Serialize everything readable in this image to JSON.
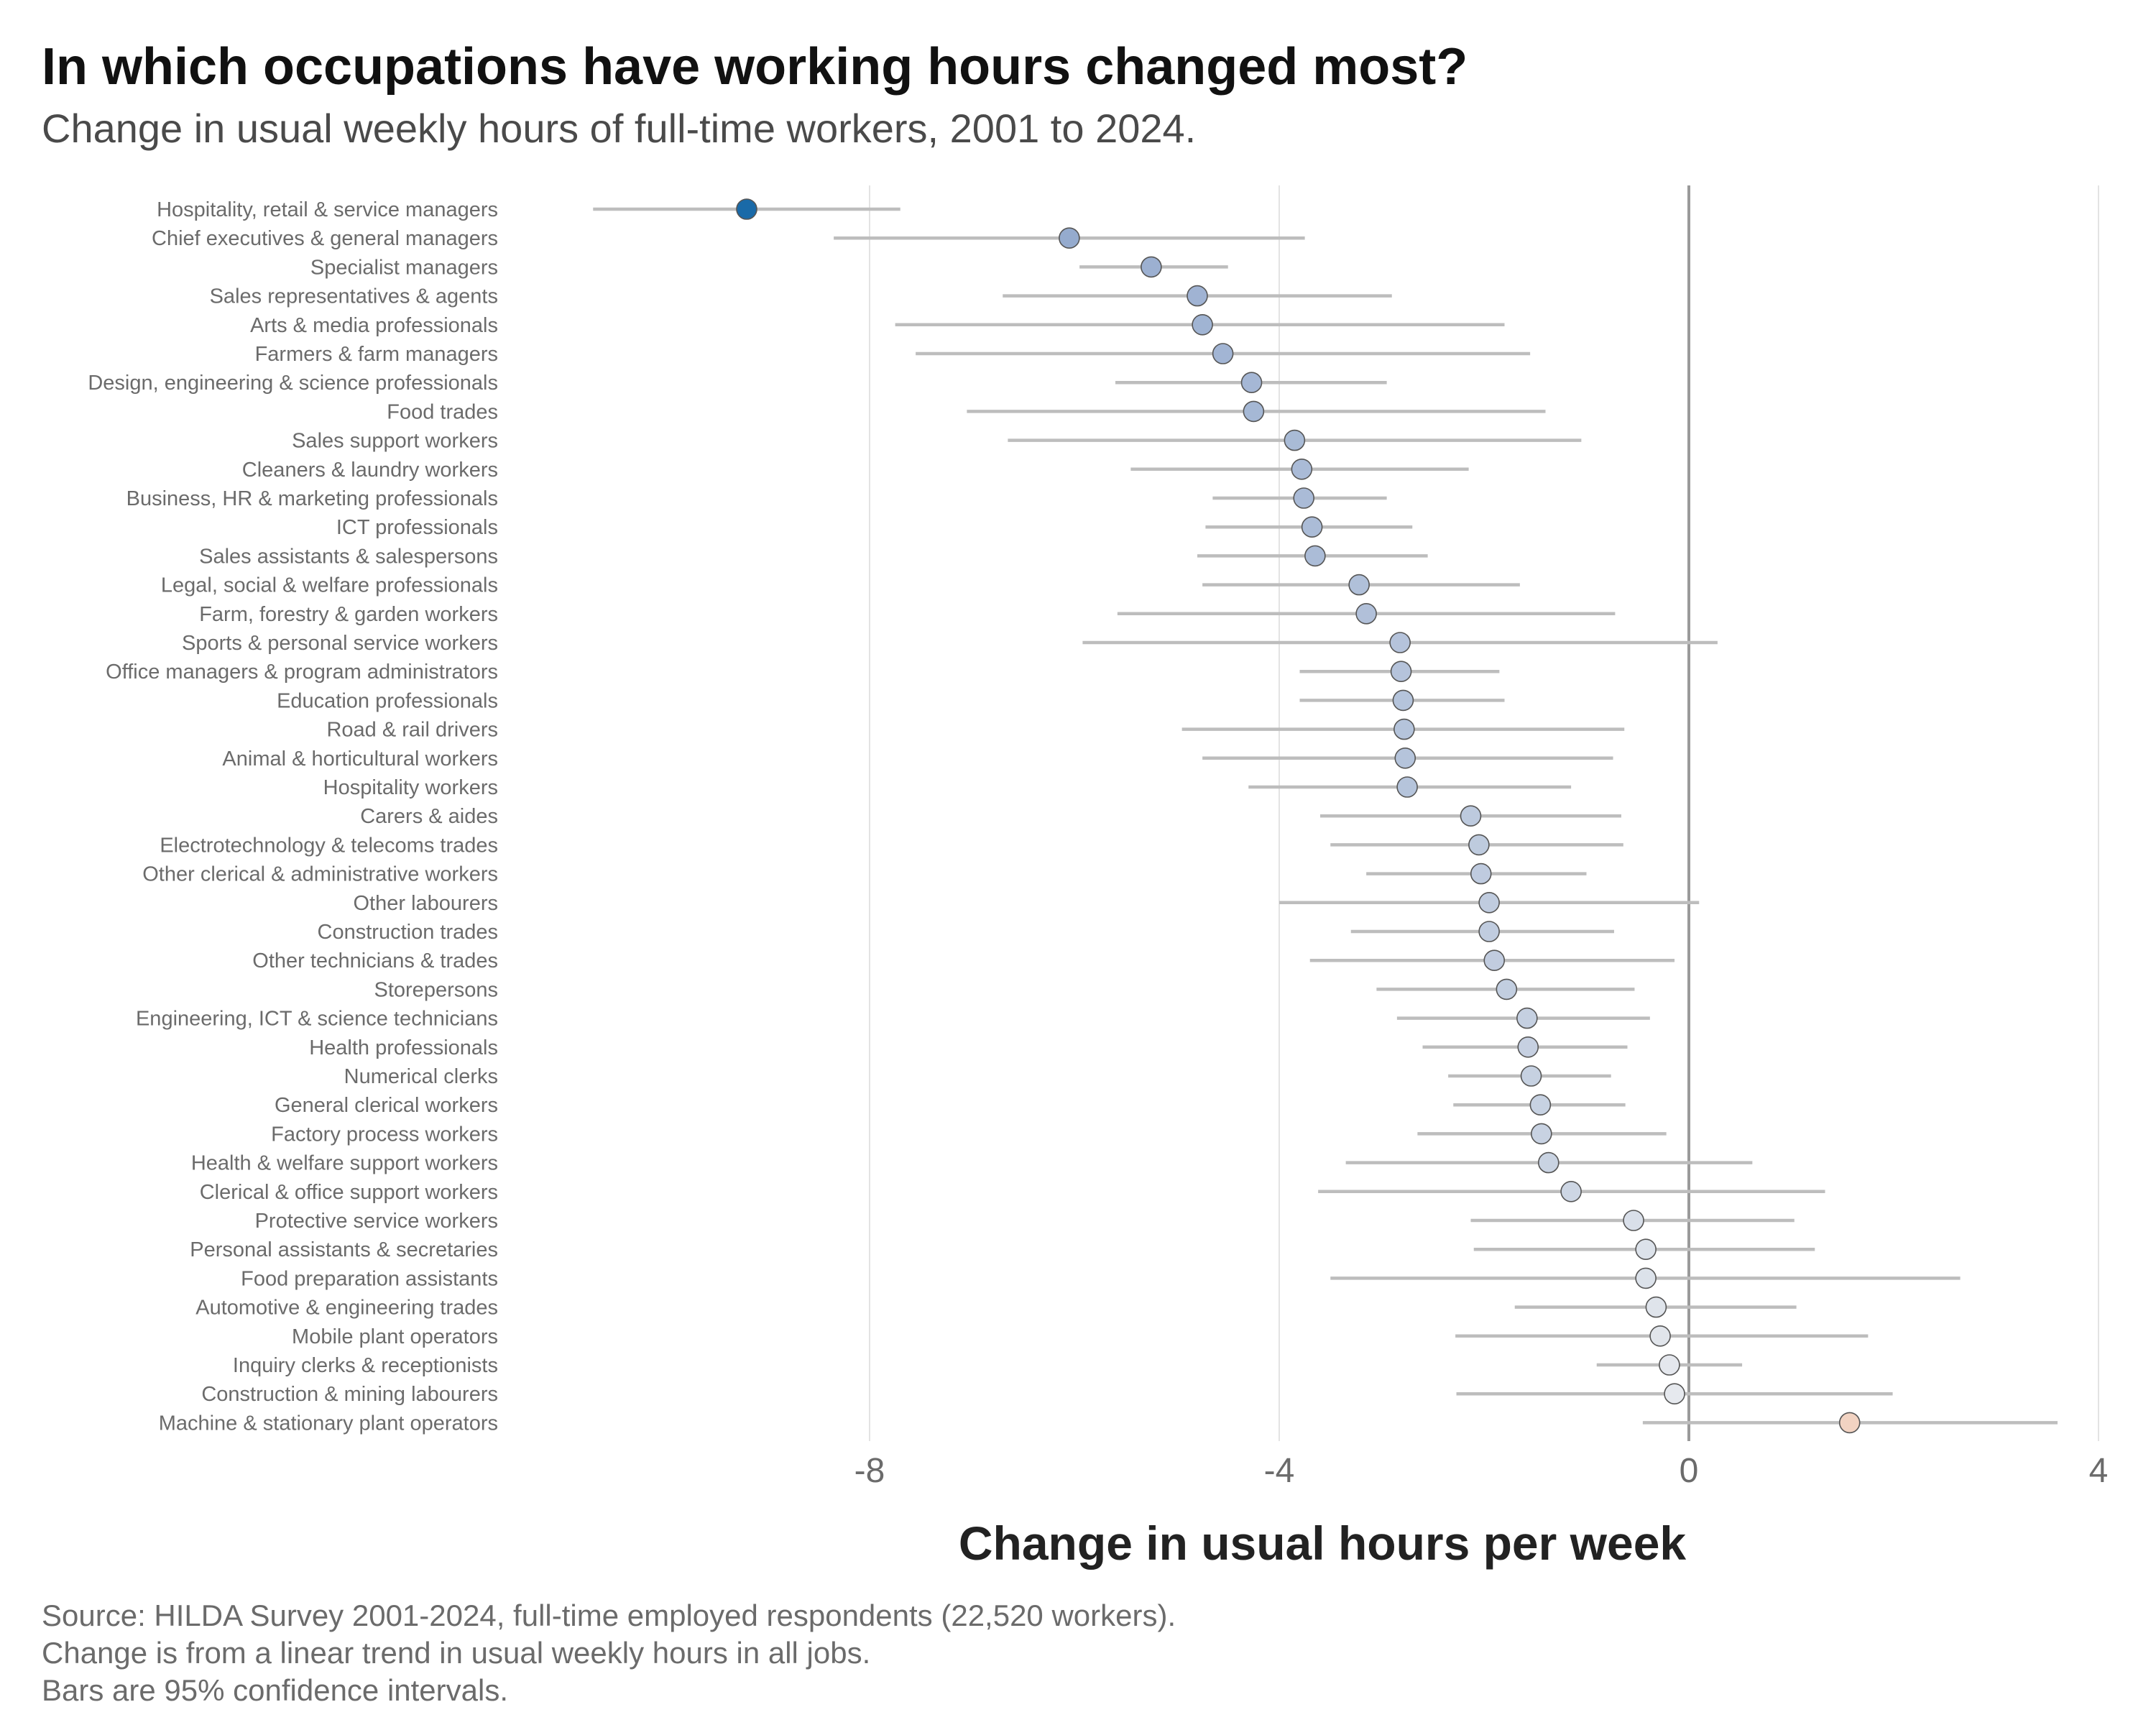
{
  "title": "In which occupations have working hours changed most?",
  "subtitle": "Change in usual weekly hours of full-time workers, 2001 to 2024.",
  "caption": [
    "Source: HILDA Survey 2001-2024, full-time employed respondents (22,520 workers).",
    "Change is from a linear trend in usual weekly hours in all jobs.",
    "Bars are 95% confidence intervals."
  ],
  "chart_data": {
    "type": "scatter",
    "subtype": "dot-and-whisker",
    "xlabel": "Change in usual hours per week",
    "ylabel": "",
    "xlim": [
      -10.9,
      4.2
    ],
    "xticks": [
      -8,
      -4,
      0,
      4
    ],
    "xtick_labels": [
      "-8",
      "-4",
      "0",
      "4"
    ],
    "grid": "vertical",
    "reference_line": 0,
    "legend": "none",
    "colors": {
      "negative_max": "#1a6aa8",
      "neutral": "#f2f2f2",
      "positive": "#f2d3c2",
      "whisker": "#bdbdbd",
      "point_stroke": "#555555"
    },
    "categories": [
      "Hospitality, retail & service managers",
      "Chief executives & general managers",
      "Specialist managers",
      "Sales representatives & agents",
      "Arts & media professionals",
      "Farmers & farm managers",
      "Design, engineering & science professionals",
      "Food trades",
      "Sales support workers",
      "Cleaners & laundry workers",
      "Business, HR & marketing professionals",
      "ICT professionals",
      "Sales assistants & salespersons",
      "Legal, social & welfare professionals",
      "Farm, forestry & garden workers",
      "Sports & personal service workers",
      "Office managers & program administrators",
      "Education professionals",
      "Road & rail drivers",
      "Animal & horticultural workers",
      "Hospitality workers",
      "Carers & aides",
      "Electrotechnology & telecoms trades",
      "Other clerical & administrative workers",
      "Other labourers",
      "Construction trades",
      "Other technicians & trades",
      "Storepersons",
      "Engineering, ICT & science technicians",
      "Health professionals",
      "Numerical clerks",
      "General clerical workers",
      "Factory process workers",
      "Health & welfare support workers",
      "Clerical & office support workers",
      "Protective service workers",
      "Personal assistants & secretaries",
      "Food preparation assistants",
      "Automotive & engineering trades",
      "Mobile plant operators",
      "Inquiry clerks & receptionists",
      "Construction & mining labourers",
      "Machine & stationary plant operators"
    ],
    "estimate": [
      -9.2,
      -6.05,
      -5.25,
      -4.8,
      -4.75,
      -4.55,
      -4.27,
      -4.25,
      -3.85,
      -3.78,
      -3.76,
      -3.68,
      -3.65,
      -3.22,
      -3.15,
      -2.82,
      -2.81,
      -2.79,
      -2.78,
      -2.77,
      -2.75,
      -2.13,
      -2.05,
      -2.03,
      -1.95,
      -1.95,
      -1.9,
      -1.78,
      -1.58,
      -1.57,
      -1.54,
      -1.45,
      -1.44,
      -1.37,
      -1.15,
      -0.54,
      -0.42,
      -0.42,
      -0.32,
      -0.28,
      -0.19,
      -0.14,
      1.57
    ],
    "ci_low": [
      -10.7,
      -8.35,
      -5.95,
      -6.7,
      -7.75,
      -7.55,
      -5.6,
      -7.05,
      -6.65,
      -5.45,
      -4.65,
      -4.72,
      -4.8,
      -4.75,
      -5.58,
      -5.92,
      -3.8,
      -3.8,
      -4.95,
      -4.75,
      -4.3,
      -3.6,
      -3.5,
      -3.15,
      -4.0,
      -3.3,
      -3.7,
      -3.05,
      -2.85,
      -2.6,
      -2.35,
      -2.3,
      -2.65,
      -3.35,
      -3.62,
      -2.13,
      -2.1,
      -3.5,
      -1.7,
      -2.28,
      -0.9,
      -2.27,
      -0.45
    ],
    "ci_high": [
      -7.7,
      -3.75,
      -4.5,
      -2.9,
      -1.8,
      -1.55,
      -2.95,
      -1.4,
      -1.05,
      -2.15,
      -2.95,
      -2.7,
      -2.55,
      -1.65,
      -0.72,
      0.28,
      -1.85,
      -1.8,
      -0.63,
      -0.74,
      -1.15,
      -0.66,
      -0.64,
      -1.0,
      0.1,
      -0.73,
      -0.14,
      -0.53,
      -0.38,
      -0.6,
      -0.76,
      -0.62,
      -0.22,
      0.62,
      1.33,
      1.03,
      1.23,
      2.65,
      1.05,
      1.75,
      0.52,
      1.99,
      3.6
    ]
  }
}
